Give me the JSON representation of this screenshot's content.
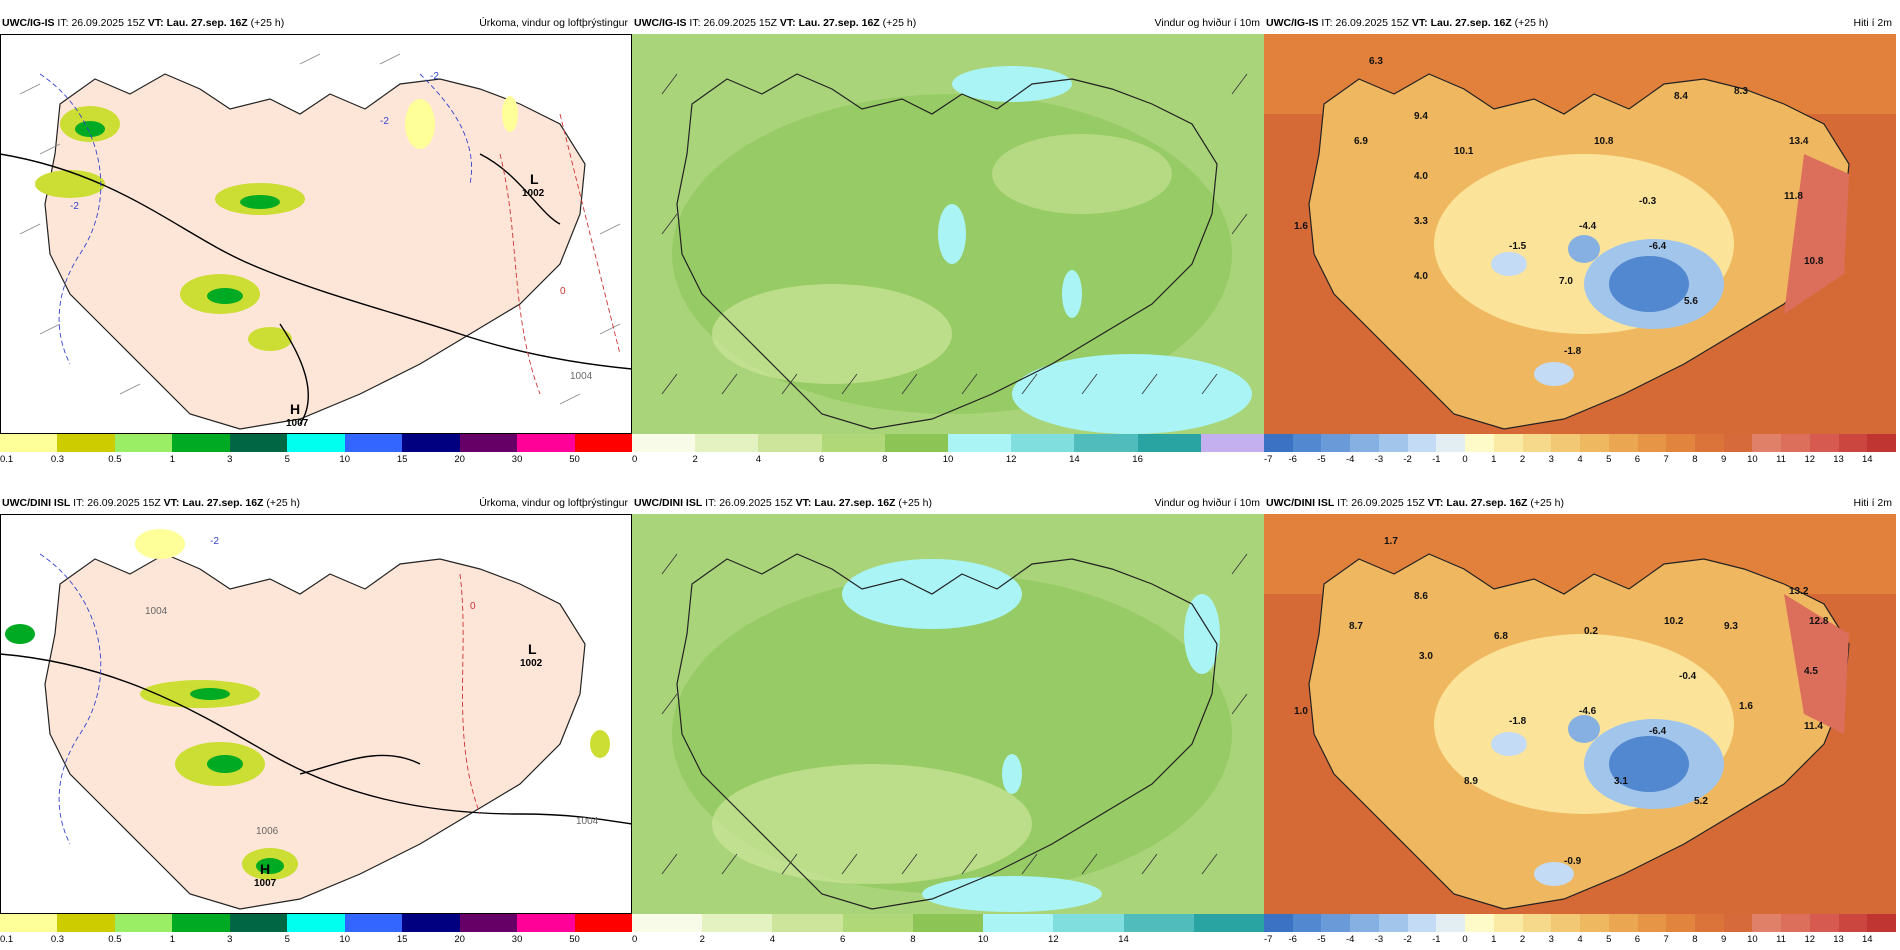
{
  "rows": [
    {
      "model": "UWC/IG-IS",
      "init_label": "IT:",
      "init_time": "26.09.2025 15Z",
      "valid_label": "VT:",
      "valid_time": "Lau. 27.sep. 16Z",
      "lead": "(+25 h)",
      "panels": {
        "precip": {
          "title": "Úrkoma, vindur og loftþrýstingur",
          "labels": [
            "L",
            "1002",
            "H",
            "1007",
            "1004",
            "-2",
            "-2",
            "0",
            "-2"
          ]
        },
        "wind": {
          "title": "Vindur og hviður í 10m"
        },
        "temp": {
          "title": "Hiti í 2m",
          "values": [
            "6.3",
            "9.4",
            "6.9",
            "10.1",
            "4.0",
            "10.8",
            "8.4",
            "8.3",
            "13.4",
            "11.8",
            "-0.3",
            "1.6",
            "3.3",
            "-1.5",
            "-4.4",
            "-6.4",
            "10.8",
            "4.0",
            "7.0",
            "5.6",
            "-1.8"
          ]
        }
      }
    },
    {
      "model": "UWC/DINI ISL",
      "init_label": "IT:",
      "init_time": "26.09.2025 15Z",
      "valid_label": "VT:",
      "valid_time": "Lau. 27.sep. 16Z",
      "lead": "(+25 h)",
      "panels": {
        "precip": {
          "title": "Úrkoma, vindur og loftþrýstingur",
          "labels": [
            "L",
            "1002",
            "H",
            "1007",
            "1004",
            "1006",
            "1004",
            "-2",
            "0"
          ]
        },
        "wind": {
          "title": "Vindur og hviður í 10m"
        },
        "temp": {
          "title": "Hiti í 2m",
          "values": [
            "1.7",
            "8.6",
            "8.7",
            "3.0",
            "6.8",
            "0.2",
            "10.2",
            "9.3",
            "13.2",
            "12.8",
            "4.5",
            "-0.4",
            "1.0",
            "-1.8",
            "-4.6",
            "-6.4",
            "1.6",
            "11.4",
            "8.9",
            "3.1",
            "5.2",
            "-0.9"
          ]
        }
      }
    }
  ],
  "colorbars": {
    "precip": {
      "ticks": [
        "0.1",
        "0.3",
        "0.5",
        "1",
        "3",
        "5",
        "10",
        "15",
        "20",
        "30",
        "50"
      ],
      "colors": [
        "#ffff99",
        "#cccc00",
        "#99ee66",
        "#00aa22",
        "#006644",
        "#00ffee",
        "#3366ff",
        "#000080",
        "#660066",
        "#ff0099",
        "#ff0000"
      ]
    },
    "wind_top": {
      "ticks": [
        "0",
        "2",
        "4",
        "6",
        "8",
        "10",
        "12",
        "14",
        "16"
      ],
      "colors": [
        "#f7fbe8",
        "#e4f2c2",
        "#cce59a",
        "#b0d878",
        "#8cc456",
        "#aaf4f6",
        "#80dede",
        "#50bcbc",
        "#2aa3a3",
        "#c4b0ee"
      ]
    },
    "wind_bottom": {
      "ticks": [
        "0",
        "2",
        "4",
        "6",
        "8",
        "10",
        "12",
        "14"
      ],
      "colors": [
        "#f7fbe8",
        "#e4f2c2",
        "#cce59a",
        "#b0d878",
        "#8cc456",
        "#aaf4f6",
        "#80dede",
        "#50bcbc",
        "#2aa3a3"
      ]
    },
    "temp": {
      "ticks": [
        "-7",
        "-6",
        "-5",
        "-4",
        "-3",
        "-2",
        "-1",
        "0",
        "1",
        "2",
        "3",
        "4",
        "5",
        "6",
        "7",
        "8",
        "9",
        "10",
        "11",
        "12",
        "13",
        "14"
      ],
      "colors": [
        "#3b72c3",
        "#5288cf",
        "#6a9ad8",
        "#86b0e2",
        "#a2c5ec",
        "#c3dbf4",
        "#e2eef2",
        "#fffbc8",
        "#fbeaa4",
        "#f6d98a",
        "#f2c874",
        "#eeb860",
        "#eaa650",
        "#e69546",
        "#e0843e",
        "#da743a",
        "#d66a3a",
        "#e08068",
        "#dc6e5c",
        "#d65a50",
        "#cc4640",
        "#c03432"
      ]
    }
  }
}
